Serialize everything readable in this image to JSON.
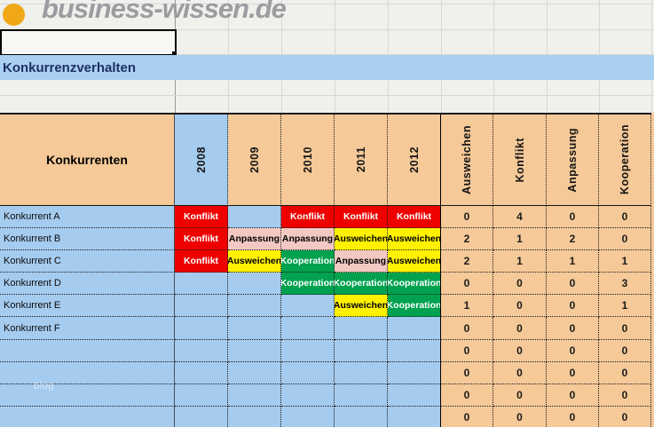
{
  "logo": {
    "brand": "business-wissen.de",
    "icon": "orange-dot-icon"
  },
  "title_cell": "Konkurrenzverhalten",
  "watermark": "blog",
  "table": {
    "corner_header": "Konkurrenten",
    "year_columns": [
      "2008",
      "2009",
      "2010",
      "2011",
      "2012"
    ],
    "metric_columns": [
      "Ausweichen",
      "Konflikt",
      "Anpassung",
      "Kooperation"
    ],
    "behavior_styles": {
      "Konflikt": {
        "bg": "#EE0000",
        "fg": "#FFFFFF"
      },
      "Anpassung": {
        "bg": "#F2C9C2",
        "fg": "#000000"
      },
      "Ausweichen": {
        "bg": "#FFF100",
        "fg": "#000000"
      },
      "Kooperation": {
        "bg": "#00A24F",
        "fg": "#FFFFFF"
      }
    },
    "rows": [
      {
        "label": "Konkurrent A",
        "years": [
          "Konflikt",
          "",
          "Konflikt",
          "Konflikt",
          "Konflikt"
        ],
        "counts": [
          "0",
          "4",
          "0",
          "0"
        ]
      },
      {
        "label": "Konkurrent B",
        "years": [
          "Konflikt",
          "Anpassung",
          "Anpassung",
          "Ausweichen",
          "Ausweichen"
        ],
        "counts": [
          "2",
          "1",
          "2",
          "0"
        ]
      },
      {
        "label": "Konkurrent C",
        "years": [
          "Konflikt",
          "Ausweichen",
          "Kooperation",
          "Anpassung",
          "Ausweichen"
        ],
        "counts": [
          "2",
          "1",
          "1",
          "1"
        ]
      },
      {
        "label": "Konkurrent D",
        "years": [
          "",
          "",
          "Kooperation",
          "Kooperation",
          "Kooperation"
        ],
        "counts": [
          "0",
          "0",
          "0",
          "3"
        ]
      },
      {
        "label": "Konkurrent E",
        "years": [
          "",
          "",
          "",
          "Ausweichen",
          "Kooperation"
        ],
        "counts": [
          "1",
          "0",
          "0",
          "1"
        ]
      },
      {
        "label": "Konkurrent F",
        "years": [
          "",
          "",
          "",
          "",
          ""
        ],
        "counts": [
          "0",
          "0",
          "0",
          "0"
        ]
      },
      {
        "label": "",
        "years": [
          "",
          "",
          "",
          "",
          ""
        ],
        "counts": [
          "0",
          "0",
          "0",
          "0"
        ]
      },
      {
        "label": "",
        "years": [
          "",
          "",
          "",
          "",
          ""
        ],
        "counts": [
          "0",
          "0",
          "0",
          "0"
        ]
      },
      {
        "label": "",
        "years": [
          "",
          "",
          "",
          "",
          ""
        ],
        "counts": [
          "0",
          "0",
          "0",
          "0"
        ]
      },
      {
        "label": "",
        "years": [
          "",
          "",
          "",
          "",
          ""
        ],
        "counts": [
          "0",
          "0",
          "0",
          "0"
        ]
      }
    ]
  },
  "colors": {
    "peach": "#F5C998",
    "cell_blue": "#A5CBEF",
    "band_blue": "#A9D0F2",
    "konflikt_red": "#EE0000",
    "ausweichen_yellow": "#FFF100",
    "kooperation_green": "#00A24F",
    "anpassung_pink": "#F2C9C2",
    "title_navy": "#1F3060",
    "logo_gray": "#9B9DA0",
    "logo_orange": "#F0A818"
  }
}
